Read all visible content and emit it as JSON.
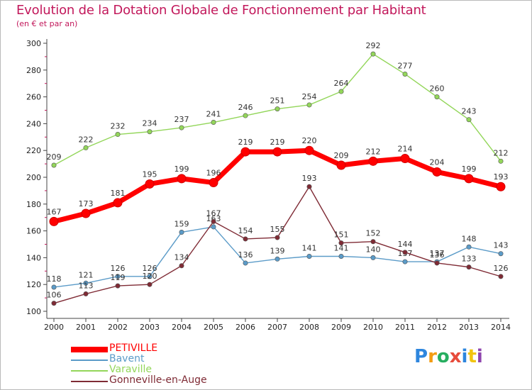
{
  "title": "Evolution de la Dotation Globale de Fonctionnement par Habitant",
  "subtitle": "(en € et par an)",
  "brand": {
    "letters": [
      "P",
      "r",
      "o",
      "x",
      "i",
      "t",
      "i"
    ],
    "colors": [
      "#2e86de",
      "#f39c12",
      "#27ae60",
      "#e74c3c",
      "#2e86de",
      "#f1c40f",
      "#8e44ad"
    ]
  },
  "chart_data": {
    "type": "line",
    "categories": [
      "2000",
      "2001",
      "2002",
      "2003",
      "2004",
      "2005",
      "2006",
      "2007",
      "2008",
      "2009",
      "2010",
      "2011",
      "2012",
      "2013",
      "2014"
    ],
    "ylim": [
      100,
      300
    ],
    "yticks": [
      "100",
      "120",
      "140",
      "160",
      "180",
      "200",
      "220",
      "240",
      "260",
      "280",
      "300"
    ],
    "grid": false,
    "legend_position": "bottom-left",
    "series": [
      {
        "name": "Varaville",
        "color": "#93d65a",
        "values": [
          209,
          222,
          232,
          234,
          237,
          241,
          246,
          251,
          254,
          264,
          292,
          277,
          260,
          243,
          212
        ],
        "labels": [
          "209",
          "222",
          "232",
          "234",
          "237",
          "241",
          "246",
          "251",
          "254",
          "264",
          "292",
          "277",
          "260",
          "243",
          "212"
        ]
      },
      {
        "name": "Bavent",
        "color": "#5b9bc8",
        "values": [
          118,
          121,
          126,
          126,
          159,
          163,
          136,
          139,
          141,
          141,
          140,
          137,
          137,
          148,
          143
        ],
        "labels": [
          "118",
          "121",
          "126",
          "126",
          "159",
          "163",
          "136",
          "139",
          "141",
          "141",
          "140",
          "137",
          "137",
          "148",
          "143"
        ]
      },
      {
        "name": "Gonneville-en-Auge",
        "color": "#7f2b35",
        "values": [
          106,
          113,
          119,
          120,
          134,
          167,
          154,
          155,
          193,
          151,
          152,
          144,
          136,
          133,
          126
        ],
        "labels": [
          "106",
          "113",
          "119",
          "120",
          "134",
          "167",
          "154",
          "155",
          "193",
          "151",
          "152",
          "144",
          "136",
          "133",
          "126"
        ]
      },
      {
        "name": "PETIVILLE",
        "color": "#ff0000",
        "values": [
          167,
          173,
          181,
          195,
          199,
          196,
          219,
          219,
          220,
          209,
          212,
          214,
          204,
          199,
          193
        ],
        "labels": [
          "167",
          "173",
          "181",
          "195",
          "199",
          "196",
          "219",
          "219",
          "220",
          "209",
          "212",
          "214",
          "204",
          "199",
          "193"
        ]
      }
    ],
    "legend": [
      {
        "name": "PETIVILLE",
        "color": "#ff0000"
      },
      {
        "name": "Bavent",
        "color": "#5b9bc8"
      },
      {
        "name": "Varaville",
        "color": "#93d65a"
      },
      {
        "name": "Gonneville-en-Auge",
        "color": "#7f2b35"
      }
    ]
  }
}
